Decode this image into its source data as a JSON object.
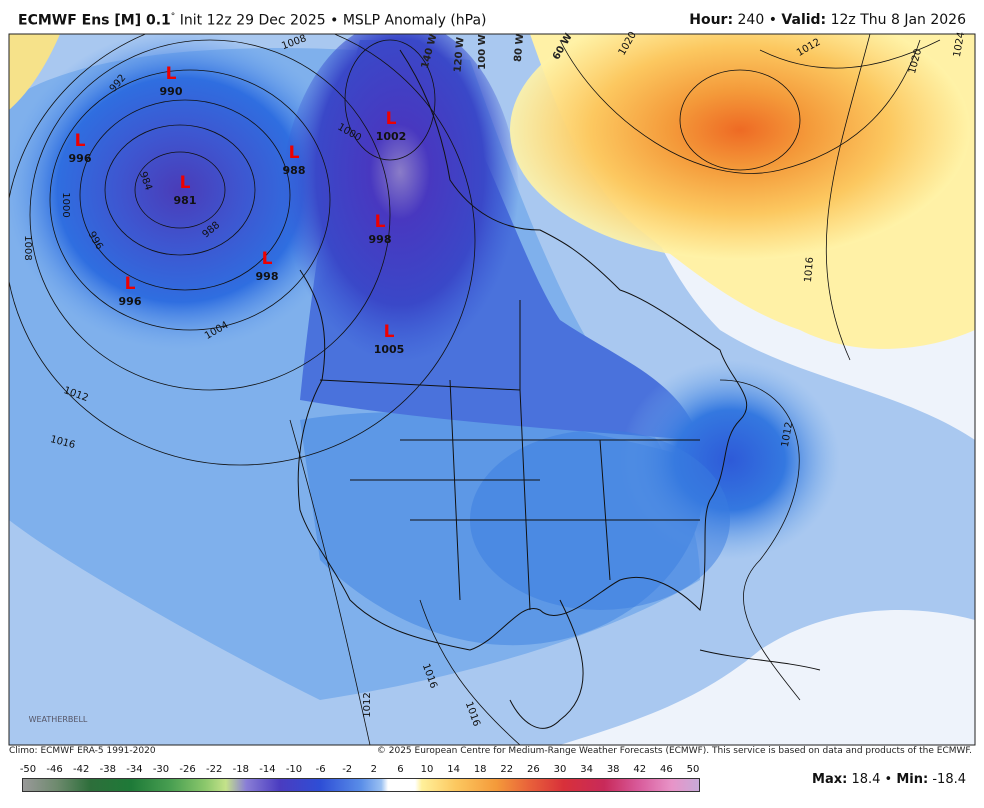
{
  "header": {
    "model": "ECMWF Ens [M] 0.1",
    "degree": "°",
    "init": "Init 12z 29 Dec 2025",
    "separator": "•",
    "product": "MSLP Anomaly (hPa)",
    "hour_label": "Hour:",
    "hour": "240",
    "valid_label": "Valid:",
    "valid": "12z Thu 8 Jan 2026"
  },
  "map": {
    "lows": [
      {
        "symbol": "L",
        "pressure": 990
      },
      {
        "symbol": "L",
        "pressure": 996
      },
      {
        "symbol": "L",
        "pressure": 981
      },
      {
        "symbol": "L",
        "pressure": 988
      },
      {
        "symbol": "L",
        "pressure": 998
      },
      {
        "symbol": "L",
        "pressure": 996
      },
      {
        "symbol": "L",
        "pressure": 1002
      },
      {
        "symbol": "L",
        "pressure": 998
      },
      {
        "symbol": "L",
        "pressure": 1005
      }
    ],
    "contour_labels": [
      1008,
      992,
      984,
      1000,
      996,
      988,
      1008,
      1004,
      1012,
      1016,
      1000,
      1020,
      1012,
      1020,
      1024,
      1016,
      1012,
      1012,
      1016,
      1016
    ],
    "longitude_labels": [
      "140 W",
      "120 W",
      "100 W",
      "80 W",
      "60 W"
    ],
    "logo": "WEATHERBELL"
  },
  "footer": {
    "climo": "Climo: ECMWF ERA-5 1991-2020",
    "copyright": "© 2025 European Centre for Medium-Range Weather Forecasts (ECMWF). This service is based on data and products of the ECMWF."
  },
  "colorbar": {
    "labels": [
      -50,
      -46,
      -42,
      -38,
      -34,
      -30,
      -26,
      -22,
      -18,
      -14,
      -10,
      -6,
      -2,
      2,
      6,
      10,
      14,
      18,
      22,
      26,
      30,
      34,
      38,
      42,
      46,
      50
    ],
    "range": [
      -50,
      50
    ]
  },
  "stats": {
    "max_label": "Max:",
    "max": "18.4",
    "separator": "•",
    "min_label": "Min:",
    "min": "-18.4"
  }
}
